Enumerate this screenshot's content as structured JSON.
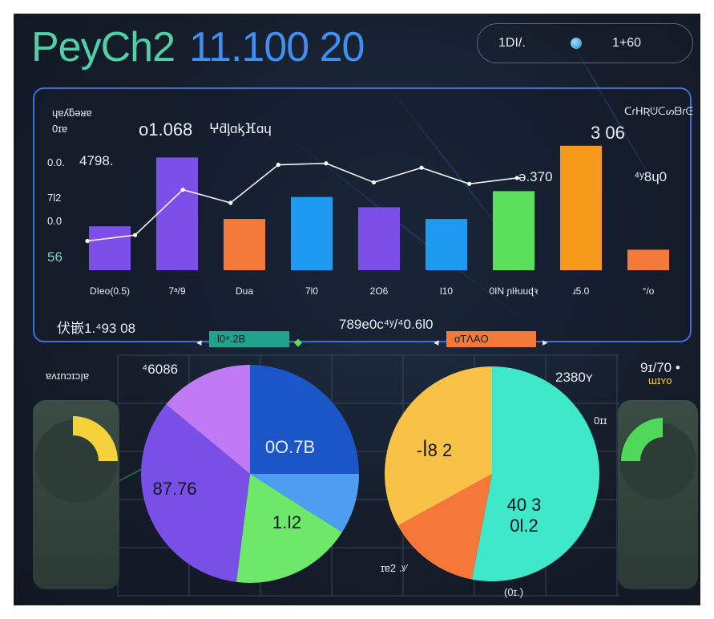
{
  "header": {
    "title_part1": "PeyCh2",
    "title_part2": "11.100 20",
    "pill_left": "1DI/.",
    "pill_right": "1+60"
  },
  "colors": {
    "purple": "#7c4fe8",
    "orange": "#f47a3a",
    "blue": "#1e9af0",
    "green": "#5ae05a",
    "amber": "#f79a1c",
    "panel_border": "#3d6fd8",
    "teal_tag": "#1fa38f",
    "orange_tag": "#f2793a"
  },
  "chart_data": [
    {
      "type": "bar",
      "title": "",
      "y_tick_labels": [
        "0.0.",
        "7l2",
        "0.0",
        "56"
      ],
      "categories": [
        "DIeo(0.5)",
        "7ᵃ/9",
        "Dua",
        "7l0",
        "2O6",
        "l10",
        "0IN  ɲlɫuuɖꝛ",
        "ɹ5.0",
        "°/o"
      ],
      "values": [
        30,
        77,
        35,
        50,
        43,
        35,
        54,
        85,
        14
      ],
      "bar_colors": [
        "#7c4fe8",
        "#7c4fe8",
        "#f47a3a",
        "#1e9af0",
        "#7c4fe8",
        "#1e9af0",
        "#5ae05a",
        "#f79a1c",
        "#f47a3a"
      ],
      "line_series": [
        20,
        24,
        55,
        46,
        72,
        73,
        60,
        70,
        59,
        63
      ],
      "ylim": [
        0,
        100
      ],
      "annotations": {
        "top_left_label": "ɥɐʎƃǝᴚɐ",
        "y_small_label": "0ɪɐ",
        "first_bar_value": "4798.",
        "header_value": "o1.068",
        "header_text": "ⵖƌᶅɑᶄⴼɑɥ",
        "peak_value": "3 06",
        "mid_value": "ǝ.370",
        "right_value": "⁴ʸ8ɥ0",
        "top_right_label": "ᑕɾᕼƦᕫᑕᔕᗷɾᕮ",
        "footer_left": "伏嵌1.⁴93 08",
        "footer_mid": "789e0c⁴ʸ/⁴0.6l0"
      }
    },
    {
      "type": "pie",
      "labels": [
        "0O.7B",
        "",
        "1.ǀ2",
        "87.76",
        ""
      ],
      "values": [
        25,
        9,
        18,
        34,
        14
      ],
      "slice_colors": [
        "#1a56c7",
        "#4d9df0",
        "#6ee86a",
        "#7a4fe8",
        "#c07af3"
      ],
      "annotation_top_left": "⁴6086"
    },
    {
      "type": "pie",
      "labels": [
        "40 3\n0l.2",
        "",
        "-ꟾ8 2"
      ],
      "values": [
        53,
        14,
        33
      ],
      "slice_colors": [
        "#3fe8c8",
        "#f5783a",
        "#f7c246"
      ],
      "annotation_top_right": "2380ʏ",
      "annotation_bottom_left": "ɪɐ2 .ʸ⁄",
      "annotation_bottom": "(0ɪ.)",
      "annotation_right": "0ɪɪ"
    }
  ],
  "tags": {
    "teal_label": "l0⁴.2B",
    "orange_label": "ɑƬΛAO"
  },
  "side": {
    "left_label": "ɐʌɪnɔɪɔꞁɐ",
    "right_top": "9ɪ/70 •",
    "right_sub": "ɯɪʏo"
  }
}
